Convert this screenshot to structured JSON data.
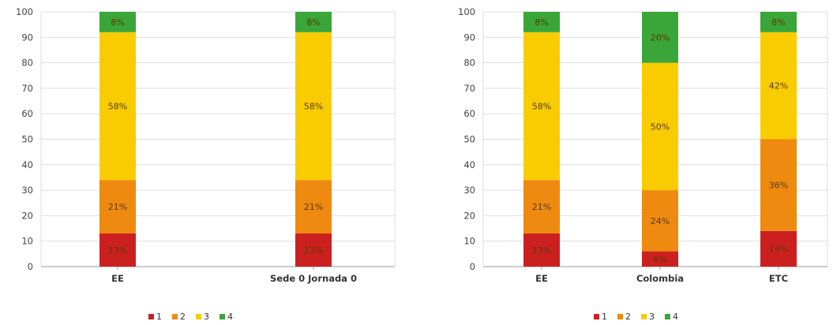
{
  "colors": {
    "1": "#cc2020",
    "2": "#ee8a10",
    "3": "#f8cc00",
    "4": "#3aa63a"
  },
  "chart_data": [
    {
      "type": "bar",
      "stacked": true,
      "ylim": [
        0,
        100
      ],
      "yticks": [
        0,
        10,
        20,
        30,
        40,
        50,
        60,
        70,
        80,
        90,
        100
      ],
      "grid": true,
      "legend_position": "bottom",
      "categories": [
        "EE",
        "Sede 0 Jornada 0"
      ],
      "series": [
        {
          "name": "1",
          "values": [
            13,
            13
          ],
          "labels": [
            "13%",
            "13%"
          ]
        },
        {
          "name": "2",
          "values": [
            21,
            21
          ],
          "labels": [
            "21%",
            "21%"
          ]
        },
        {
          "name": "3",
          "values": [
            58,
            58
          ],
          "labels": [
            "58%",
            "58%"
          ]
        },
        {
          "name": "4",
          "values": [
            8,
            8
          ],
          "labels": [
            "8%",
            "8%"
          ]
        }
      ]
    },
    {
      "type": "bar",
      "stacked": true,
      "ylim": [
        0,
        100
      ],
      "yticks": [
        0,
        10,
        20,
        30,
        40,
        50,
        60,
        70,
        80,
        90,
        100
      ],
      "grid": true,
      "legend_position": "bottom",
      "categories": [
        "EE",
        "Colombia",
        "ETC"
      ],
      "series": [
        {
          "name": "1",
          "values": [
            13,
            6,
            14
          ],
          "labels": [
            "13%",
            "6%",
            "14%"
          ]
        },
        {
          "name": "2",
          "values": [
            21,
            24,
            36
          ],
          "labels": [
            "21%",
            "24%",
            "36%"
          ]
        },
        {
          "name": "3",
          "values": [
            58,
            50,
            42
          ],
          "labels": [
            "58%",
            "50%",
            "42%"
          ]
        },
        {
          "name": "4",
          "values": [
            8,
            20,
            8
          ],
          "labels": [
            "8%",
            "20%",
            "8%"
          ]
        }
      ]
    }
  ]
}
